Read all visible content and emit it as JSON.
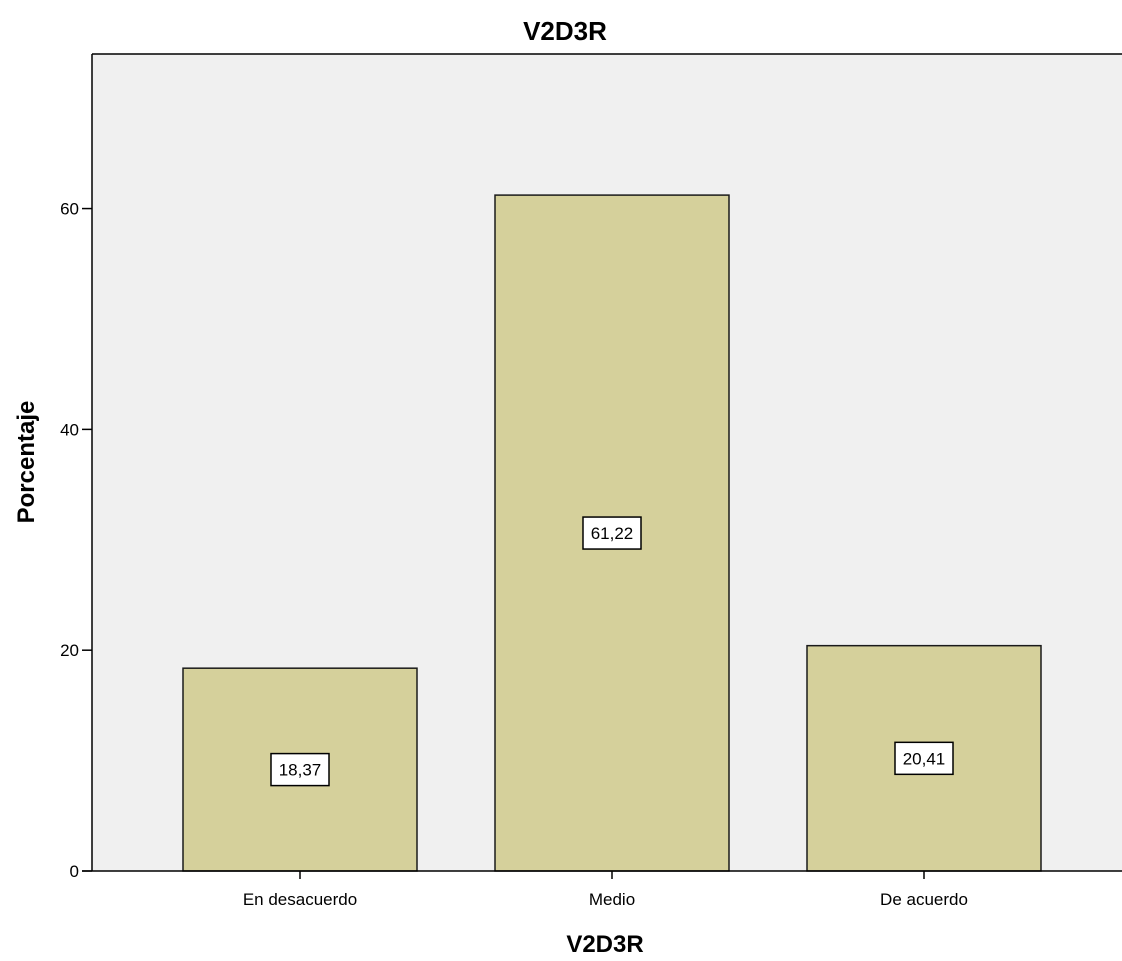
{
  "chart_data": {
    "type": "bar",
    "title": "V2D3R",
    "xlabel": "V2D3R",
    "ylabel": "Porcentaje",
    "categories": [
      "En desacuerdo",
      "Medio",
      "De acuerdo"
    ],
    "values": [
      18.37,
      61.22,
      20.41
    ],
    "data_labels": [
      "18,37",
      "61,22",
      "20,41"
    ],
    "yticks": [
      0,
      20,
      40,
      60
    ],
    "ylim": [
      0,
      74
    ],
    "grid": false,
    "legend": "none",
    "colors": {
      "bar_fill": "#d5d09b",
      "bar_stroke": "#1a1a1a",
      "plot_background": "#f0f0f0",
      "axis": "#000000",
      "label_box_fill": "#ffffff"
    }
  }
}
